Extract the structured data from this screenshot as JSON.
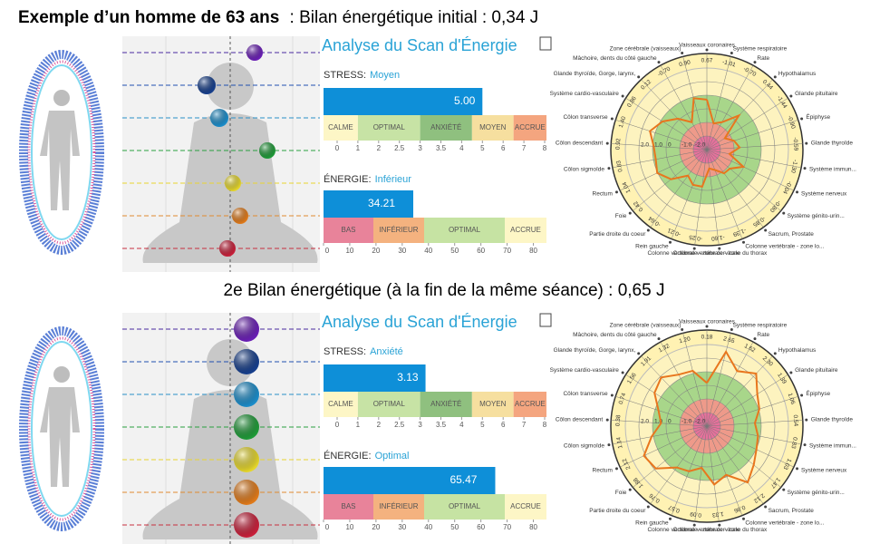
{
  "title": {
    "bold": "Exemple d’un homme de 63 ans",
    "rest": ": Bilan énergétique initial : 0,34 J"
  },
  "scan_title": "Analyse du Scan d'Énergie",
  "stress_label": "STRESS:",
  "energy_label": "ÉNERGIE:",
  "stress_zones": [
    "CALME",
    "OPTIMAL",
    "ANXIÉTÉ",
    "MOYEN",
    "ACCRUE"
  ],
  "stress_zone_colors": [
    "#fdf6c6",
    "#c7e3a5",
    "#8fc07f",
    "#f6df9f",
    "#f4a57f"
  ],
  "stress_ticks": [
    0,
    1,
    2,
    2.5,
    3,
    3.5,
    4,
    5,
    6,
    7,
    8
  ],
  "energy_zones": [
    "BAS",
    "INFÉRIEUR",
    "OPTIMAL",
    "ACCRUE"
  ],
  "energy_zone_colors": [
    "#e8839a",
    "#f4b27f",
    "#c6e3a3",
    "#fdf6c6"
  ],
  "energy_xlim": [
    0,
    85
  ],
  "energy_ticks": [
    0,
    10,
    20,
    30,
    40,
    50,
    60,
    70,
    80
  ],
  "bar_color": "#0e8fd8",
  "radar_labels": [
    "Vaisseaux coronaires",
    "Système respiratoire",
    "Rate",
    "Hypothalamus",
    "Glande pituitaire",
    "Épiphyse",
    "Glande thyroïde",
    "Système immun...",
    "Système nerveux",
    "Système génito-urin...",
    "Sacrum, Prostate",
    "Colonne vertébrale - zone lo...",
    "Colonne vertébrale - zone du thorax",
    "Colonne vertébrale - zone cervicale",
    "Rein gauche",
    "Partie droite du coeur",
    "Foie",
    "Rectum",
    "Côlon sigmoïde",
    "Côlon descendant",
    "Côlon transverse",
    "Système cardio-vasculaire",
    "Glande thyroïde, Gorge, larynx,",
    "Mâchoire, dents du côté gauche",
    "Zone cérébrale (vaisseaux)"
  ],
  "radar_rlim": [
    -3,
    3
  ],
  "radar_ticks": [
    {
      "value": -2,
      "label": "-2.0"
    },
    {
      "value": -1,
      "label": "-1.0"
    },
    0,
    {
      "value": 1,
      "label": "1.0"
    },
    {
      "value": 2,
      "label": "2.0"
    }
  ],
  "radar_color": "#e8761e",
  "sessions": [
    {
      "stress_level": "Moyen",
      "stress_value": 5,
      "stress_value_label": "5.00",
      "energy_level": "Inférieur",
      "energy_value": 34.21,
      "radar_values": [
        0.67,
        -1.01,
        -0.7,
        0.44,
        -1.44,
        -0.9,
        -0.59,
        -1.3,
        -0.04,
        -0.8,
        -0.85,
        -1.39,
        -1.6,
        -0.25,
        -0.21,
        -0.64,
        0.42,
        1.04,
        0.83,
        0.92,
        1.4,
        0.86,
        0.12,
        -0.7,
        0.9
      ],
      "radar_value_labels": [
        "0.67",
        "-1.01",
        "-0.70",
        "0.44",
        "-1.44",
        "-0.90",
        "-0.59",
        "-1.30",
        "-0.04",
        "-0.80",
        "-0.85",
        "-1.39",
        "-1.60",
        "-0.25",
        "-0.21",
        "-0.64",
        "0.42",
        "1.04",
        "0.83",
        "0.92",
        "1.40",
        "0.86",
        "0.12",
        "-0.70",
        "0.90"
      ]
    },
    {
      "heading": "2e Bilan énergétique (à la fin de la même séance) : 0,65 J",
      "stress_level": "Anxiété",
      "stress_value": 3.13,
      "energy_level": "Optimal",
      "energy_value": 65.47,
      "radar_values": [
        0.18,
        2.65,
        1.62,
        2.3,
        1.39,
        1.06,
        0.54,
        0.83,
        1.03,
        1.47,
        2.12,
        0.86,
        1.33,
        0.09,
        0.57,
        0.76,
        1.88,
        2.12,
        1.14,
        0.38,
        0.74,
        1.56,
        1.91,
        1.32,
        1.2
      ],
      "radar_value_labels": [
        "0.18",
        "2.65",
        "1.62",
        "2.30",
        "1.39",
        "1.06",
        "0.54",
        "0.83",
        "1.03",
        "1.47",
        "2.12",
        "0.86",
        "1.33",
        "0.09",
        "0.57",
        "0.76",
        "1.88",
        "2.12",
        "1.14",
        "0.38",
        "0.74",
        "1.56",
        "1.91",
        "1.32",
        "1.20"
      ]
    }
  ]
}
